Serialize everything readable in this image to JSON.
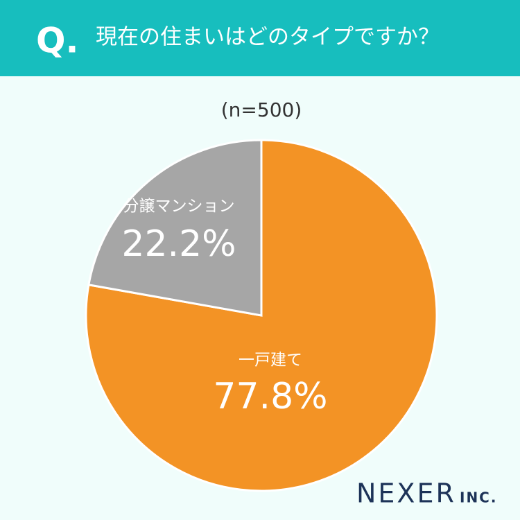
{
  "chart_data": {
    "type": "pie",
    "title": "現在の住まいはどのタイプですか？",
    "subtitle": "(n=500)",
    "categories": [
      "一戸建て",
      "分譲マンション"
    ],
    "values": [
      77.8,
      22.2
    ],
    "value_labels": [
      "77.8%",
      "22.2%"
    ],
    "colors": [
      "#f39325",
      "#a6a6a6"
    ]
  },
  "question_mark": "Q.",
  "brand": "NEXER",
  "brand_suffix": "INC."
}
